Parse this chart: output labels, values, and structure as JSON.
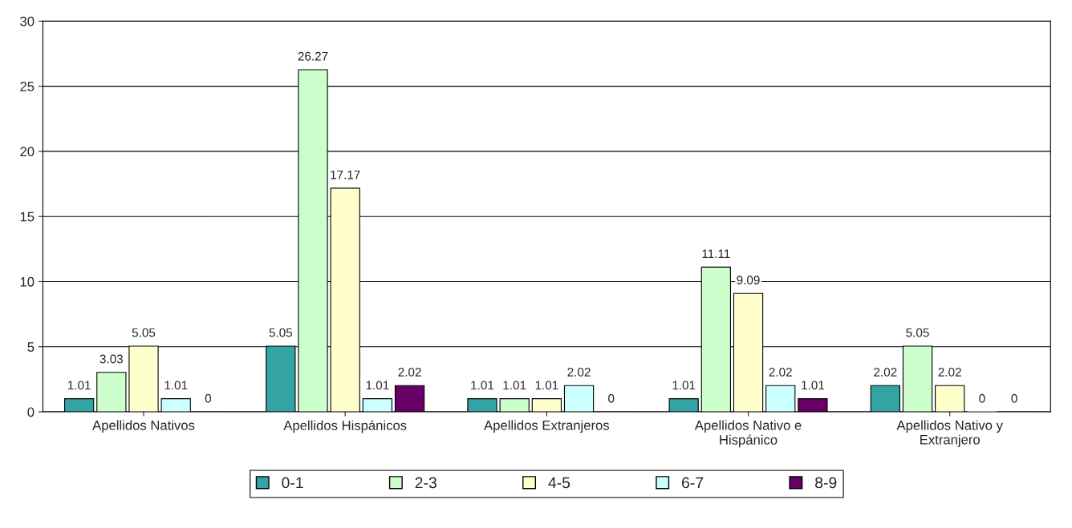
{
  "chart_data": {
    "type": "bar",
    "categories": [
      "Apellidos Nativos",
      "Apellidos Hispánicos",
      "Apellidos Extranjeros",
      "Apellidos Nativo e\nHispánico",
      "Apellidos Nativo y\nExtranjero"
    ],
    "series": [
      {
        "name": "0-1",
        "color": "#33a3a3",
        "values": [
          1.01,
          5.05,
          1.01,
          1.01,
          2.02
        ]
      },
      {
        "name": "2-3",
        "color": "#ccffcc",
        "values": [
          3.03,
          26.27,
          1.01,
          11.11,
          5.05
        ]
      },
      {
        "name": "4-5",
        "color": "#ffffcc",
        "values": [
          5.05,
          17.17,
          1.01,
          9.09,
          2.02
        ]
      },
      {
        "name": "6-7",
        "color": "#ccffff",
        "values": [
          1.01,
          1.01,
          2.02,
          2.02,
          0
        ]
      },
      {
        "name": "8-9",
        "color": "#660066",
        "values": [
          0,
          2.02,
          0,
          1.01,
          0
        ]
      }
    ],
    "ylim": [
      0,
      30
    ],
    "yticks": [
      0,
      5,
      10,
      15,
      20,
      25,
      30
    ],
    "grid": "y",
    "legend": "bottom",
    "data_labels": true
  }
}
